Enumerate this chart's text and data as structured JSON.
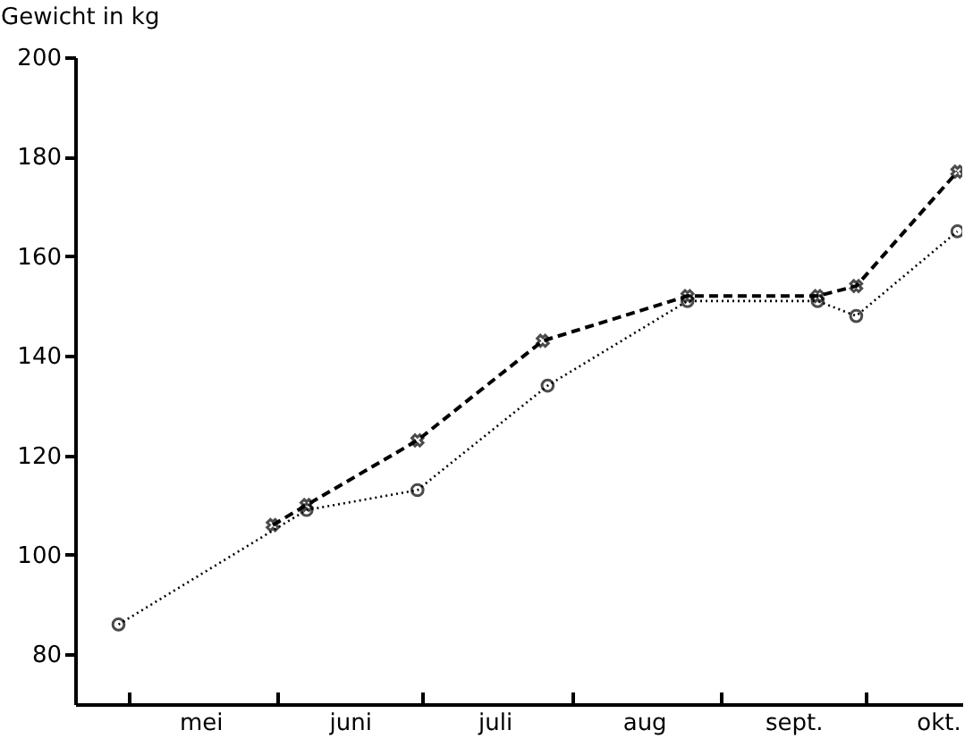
{
  "chart_data": {
    "type": "line",
    "ylabel": "Gewicht in kg",
    "xlim": [
      "--04-20",
      "--10-21"
    ],
    "ylim": [
      70,
      200
    ],
    "xticks": [
      {
        "value": "--05-01",
        "label": null
      },
      {
        "value": "--06-01",
        "label": null
      },
      {
        "value": "--07-01",
        "label": null
      },
      {
        "value": "--08-01",
        "label": null
      },
      {
        "value": "--09-01",
        "label": null
      },
      {
        "value": "--10-01",
        "label": null
      },
      {
        "value": "--05-16",
        "label": "mei"
      },
      {
        "value": "--06-16",
        "label": "juni"
      },
      {
        "value": "--07-16",
        "label": "juli"
      },
      {
        "value": "--08-16",
        "label": "aug"
      },
      {
        "value": "--09-16",
        "label": "sept."
      },
      {
        "value": "--10-16",
        "label": "okt."
      }
    ],
    "yticks": [
      80,
      100,
      120,
      140,
      160,
      180,
      200
    ],
    "grid": false,
    "series": [
      {
        "color": "#000000",
        "marker": "circle",
        "line_style": "dotted",
        "x": [
          "--04-29",
          "--06-07",
          "--06-30",
          "--07-27",
          "--08-25",
          "--09-21",
          "--09-29",
          "--10-20"
        ],
        "values": [
          86,
          109,
          113,
          134,
          151,
          151,
          148,
          165
        ]
      },
      {
        "color": "#000000",
        "marker": "cross",
        "line_style": "dashed",
        "x": [
          "--05-31",
          "--06-07",
          "--06-30",
          "--07-26",
          "--08-25",
          "--09-21",
          "--09-29",
          "--10-20"
        ],
        "values": [
          106,
          110,
          123,
          143,
          152,
          152,
          154,
          177
        ]
      }
    ]
  }
}
